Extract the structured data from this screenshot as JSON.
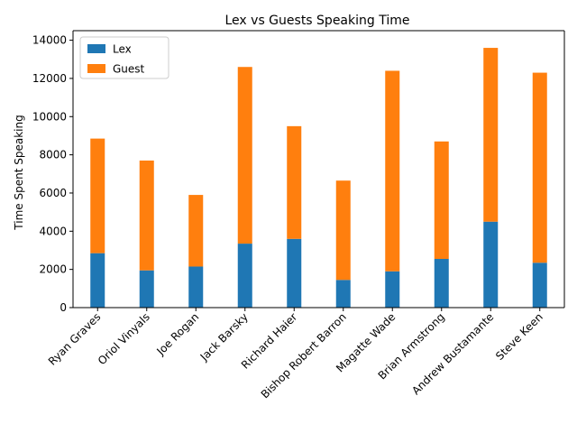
{
  "chart_data": {
    "type": "bar",
    "stacked": true,
    "title": "Lex vs Guests Speaking Time",
    "xlabel": "",
    "ylabel": "Time Spent Speaking",
    "categories": [
      "Ryan Graves",
      "Oriol Vinyals",
      "Joe Rogan",
      "Jack Barsky",
      "Richard Haier",
      "Bishop Robert Barron",
      "Magatte Wade",
      "Brian Armstrong",
      "Andrew Bustamante",
      "Steve Keen"
    ],
    "series": [
      {
        "name": "Lex",
        "color": "#1f77b4",
        "values": [
          2850,
          1950,
          2150,
          3350,
          3600,
          1450,
          1900,
          2550,
          4500,
          2350
        ]
      },
      {
        "name": "Guest",
        "color": "#ff7f0e",
        "values": [
          6000,
          5750,
          3750,
          9250,
          5900,
          5200,
          10500,
          6150,
          9100,
          9950
        ]
      }
    ],
    "ylim": [
      0,
      14500
    ],
    "yticks": [
      0,
      2000,
      4000,
      6000,
      8000,
      10000,
      12000,
      14000
    ],
    "grid": false,
    "legend": "upper-left"
  }
}
